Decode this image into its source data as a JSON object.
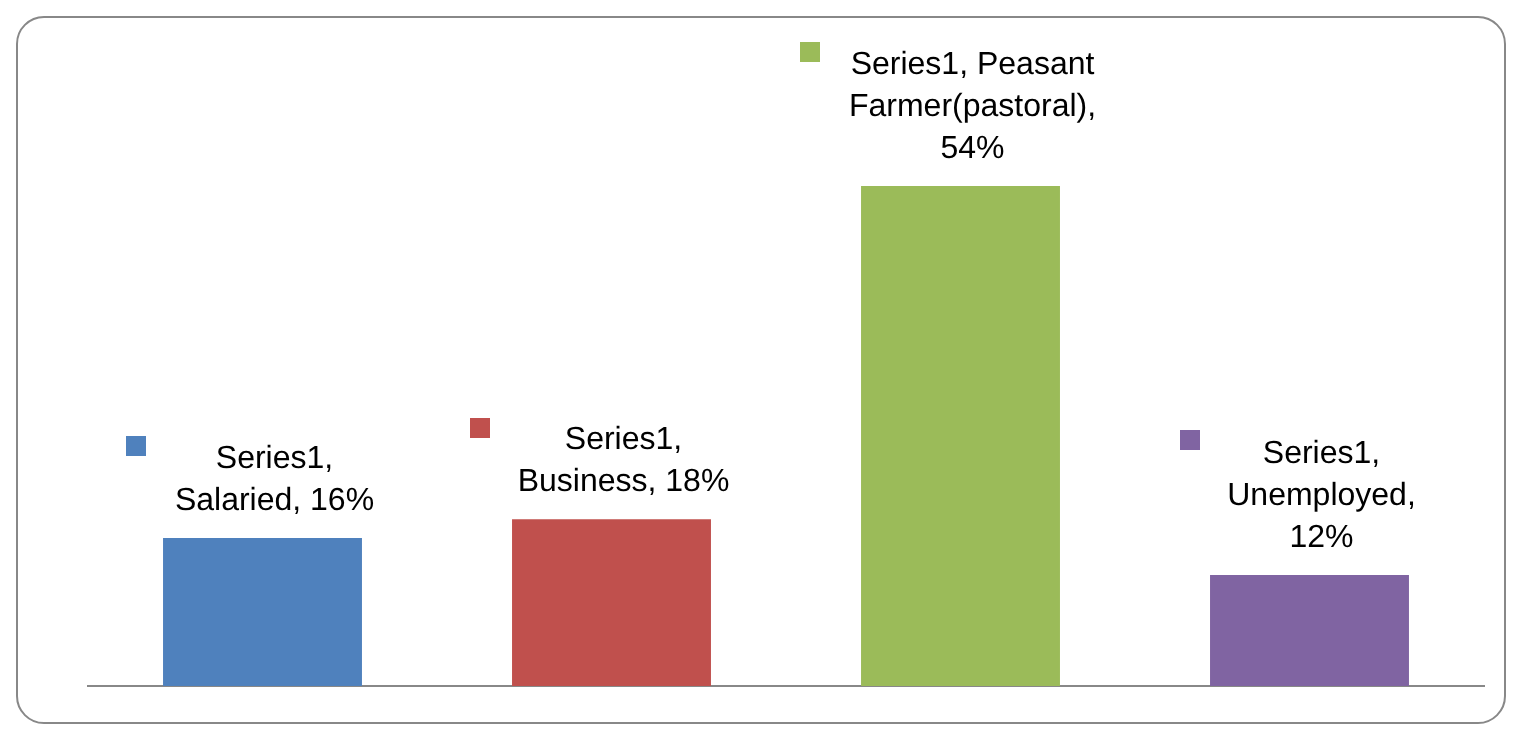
{
  "chart_data": {
    "type": "bar",
    "categories": [
      null,
      null,
      null,
      null
    ],
    "values": [
      16,
      18,
      54,
      12
    ],
    "colors": [
      "#4f81bd",
      "#c0504d",
      "#9bbb59",
      "#8064a2"
    ],
    "value_labels": [
      "Series1, Salaried, 16%",
      "Series1, Business, 18%",
      "Series1, Peasant Farmer(pastoral), 54%",
      "Series1, Unemployed, 12%"
    ],
    "tick_labels": false,
    "grid": false,
    "legend": false
  }
}
